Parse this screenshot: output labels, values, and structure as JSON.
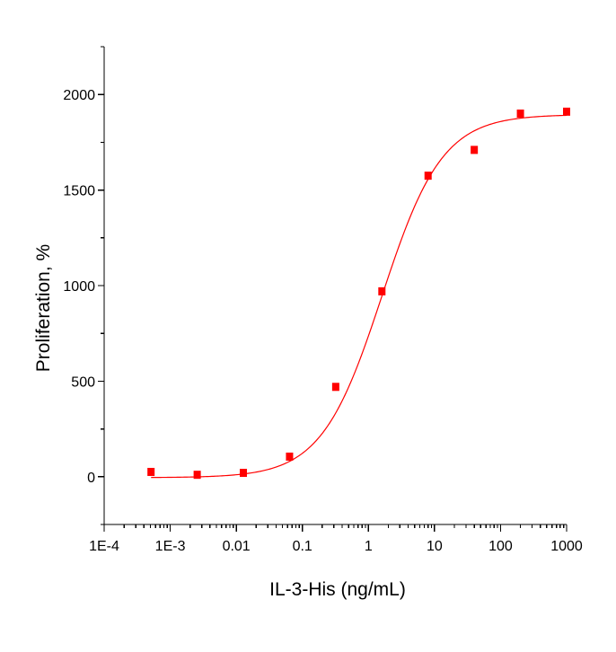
{
  "chart_data": {
    "type": "scatter",
    "title": "",
    "xlabel": "IL-3-His (ng/mL)",
    "ylabel": "Proliferation, %",
    "x_scale": "log",
    "xlim": [
      0.0001,
      1000
    ],
    "ylim": [
      -250,
      2250
    ],
    "x_ticks": [
      0.0001,
      0.001,
      0.01,
      0.1,
      1,
      10,
      100,
      1000
    ],
    "x_tick_labels": [
      "1E-4",
      "1E-3",
      "0.01",
      "0.1",
      "1",
      "10",
      "100",
      "1000"
    ],
    "y_ticks": [
      0,
      500,
      1000,
      1500,
      2000
    ],
    "y_tick_labels": [
      "0",
      "500",
      "1000",
      "1500",
      "2000"
    ],
    "grid": false,
    "legend": "none",
    "series": [
      {
        "marker": "square",
        "color": "#ff0000",
        "x": [
          0.000512,
          0.00256,
          0.0128,
          0.064,
          0.32,
          1.6,
          8,
          40,
          200,
          1000
        ],
        "y": [
          25,
          10,
          20,
          105,
          470,
          970,
          1575,
          1710,
          1900,
          1910
        ]
      }
    ],
    "fit_curve": {
      "type": "4PL",
      "color": "#ff0000",
      "bottom": -5,
      "top": 1895,
      "ec50": 1.6,
      "hill": 0.95
    }
  }
}
